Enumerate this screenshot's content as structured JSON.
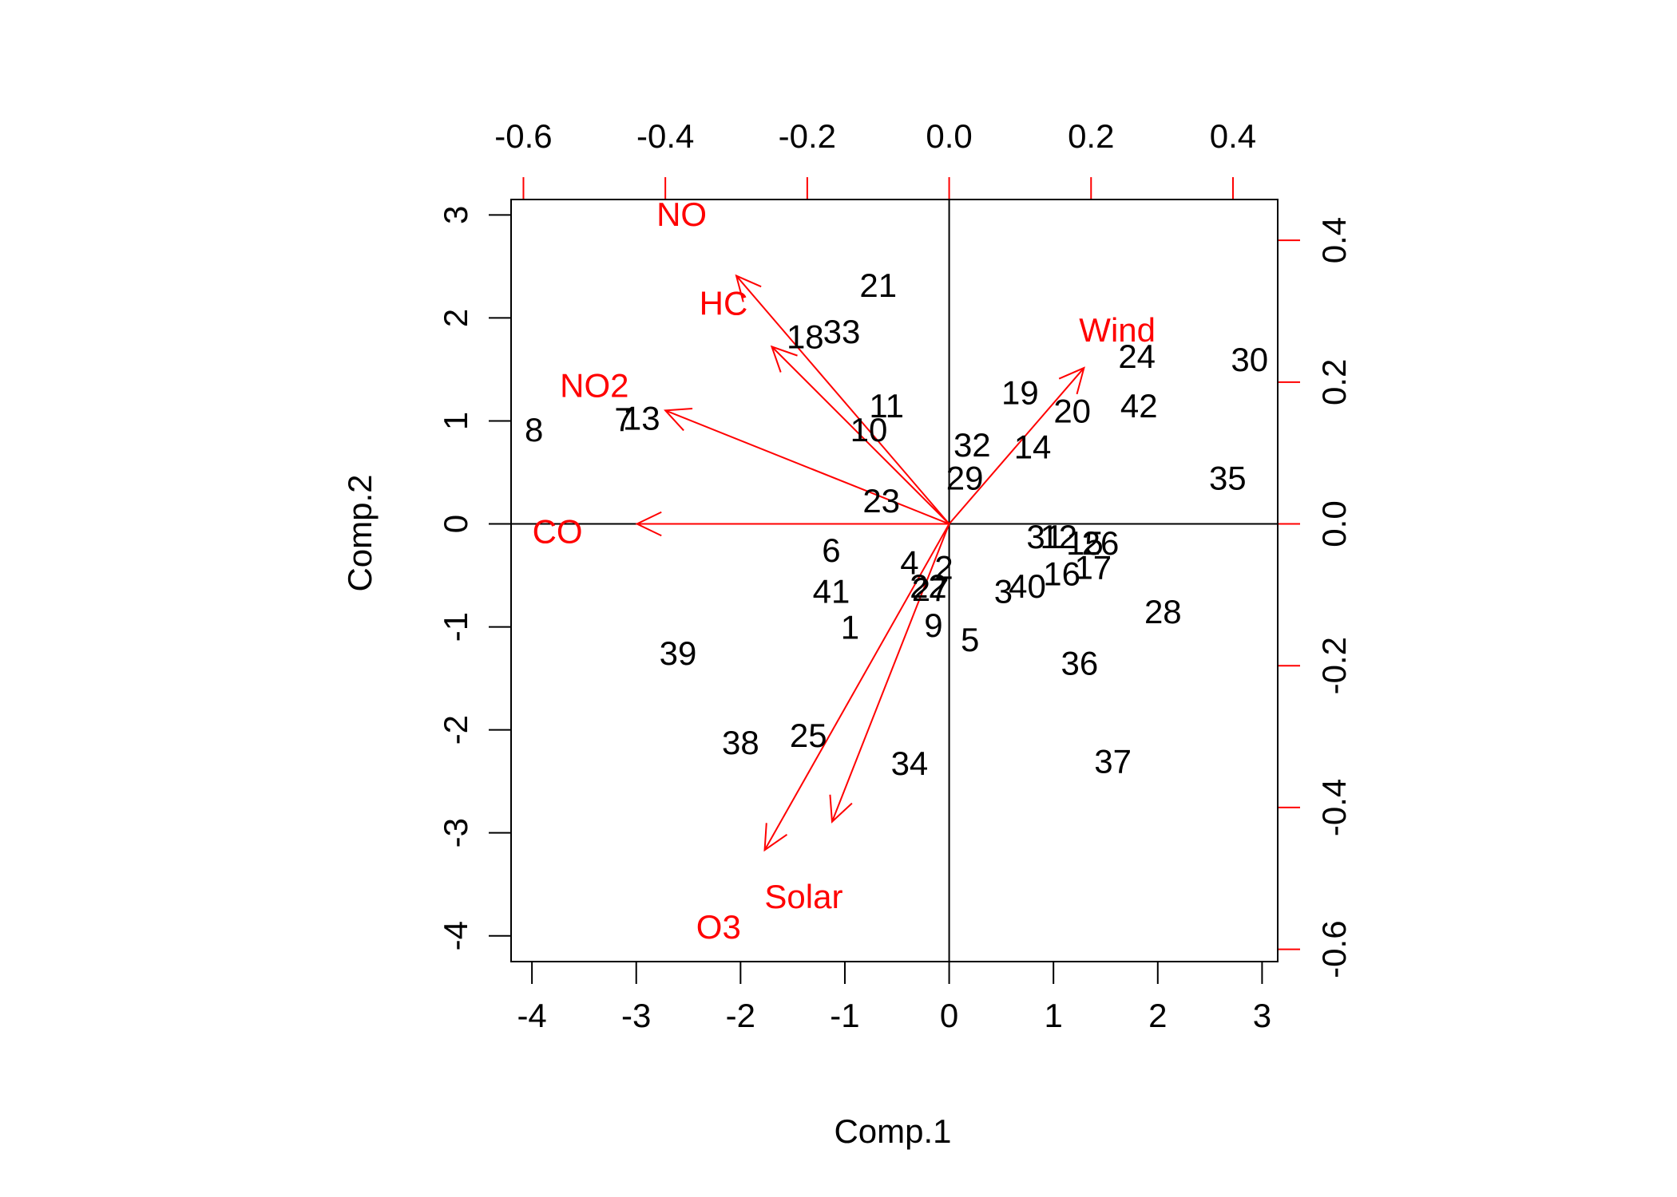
{
  "chart_data": {
    "type": "scatter",
    "xlabel": "Comp.1",
    "ylabel": "Comp.2",
    "xlim": [
      -4.2,
      3.15
    ],
    "ylim": [
      -4.25,
      3.15
    ],
    "x_ticks": [
      -4,
      -3,
      -2,
      -1,
      0,
      1,
      2,
      3
    ],
    "y_ticks": [
      -4,
      -3,
      -2,
      -1,
      0,
      1,
      2,
      3
    ],
    "loading_axis": {
      "top_ticks": [
        -0.6,
        -0.4,
        -0.2,
        0.0,
        0.2,
        0.4
      ],
      "right_ticks": [
        -0.6,
        -0.4,
        -0.2,
        0.0,
        0.2,
        0.4
      ],
      "top_tick_labels": [
        "-0.6",
        "-0.4",
        "-0.2",
        "0.0",
        "0.2",
        "0.4"
      ],
      "right_tick_labels": [
        "-0.6",
        "-0.4",
        "-0.2",
        "0.0",
        "0.2",
        "0.4"
      ],
      "color": "#ff0000"
    },
    "points": [
      {
        "label": "1",
        "x": -0.95,
        "y": -1.0
      },
      {
        "label": "2",
        "x": -0.05,
        "y": -0.42
      },
      {
        "label": "3",
        "x": 0.52,
        "y": -0.65
      },
      {
        "label": "4",
        "x": -0.38,
        "y": -0.37
      },
      {
        "label": "5",
        "x": 0.2,
        "y": -1.12
      },
      {
        "label": "6",
        "x": -1.13,
        "y": -0.25
      },
      {
        "label": "7",
        "x": -3.12,
        "y": 1.02
      },
      {
        "label": "8",
        "x": -3.98,
        "y": 0.92
      },
      {
        "label": "9",
        "x": -0.15,
        "y": -0.98
      },
      {
        "label": "10",
        "x": -0.77,
        "y": 0.92
      },
      {
        "label": "11",
        "x": -0.6,
        "y": 1.15
      },
      {
        "label": "12",
        "x": 1.05,
        "y": -0.12
      },
      {
        "label": "13",
        "x": -2.95,
        "y": 1.03
      },
      {
        "label": "14",
        "x": 0.8,
        "y": 0.75
      },
      {
        "label": "15",
        "x": 1.3,
        "y": -0.18
      },
      {
        "label": "16",
        "x": 1.08,
        "y": -0.48
      },
      {
        "label": "17",
        "x": 1.38,
        "y": -0.42
      },
      {
        "label": "18",
        "x": -1.38,
        "y": 1.82
      },
      {
        "label": "19",
        "x": 0.68,
        "y": 1.28
      },
      {
        "label": "20",
        "x": 1.18,
        "y": 1.1
      },
      {
        "label": "21",
        "x": -0.68,
        "y": 2.32
      },
      {
        "label": "22",
        "x": -0.2,
        "y": -0.6
      },
      {
        "label": "23",
        "x": -0.65,
        "y": 0.23
      },
      {
        "label": "24",
        "x": 1.8,
        "y": 1.63
      },
      {
        "label": "25",
        "x": -1.35,
        "y": -2.05
      },
      {
        "label": "26",
        "x": 1.45,
        "y": -0.18
      },
      {
        "label": "27",
        "x": -0.18,
        "y": -0.63
      },
      {
        "label": "28",
        "x": 2.05,
        "y": -0.85
      },
      {
        "label": "29",
        "x": 0.15,
        "y": 0.45
      },
      {
        "label": "30",
        "x": 2.88,
        "y": 1.6
      },
      {
        "label": "31",
        "x": 0.92,
        "y": -0.12
      },
      {
        "label": "32",
        "x": 0.22,
        "y": 0.77
      },
      {
        "label": "33",
        "x": -1.03,
        "y": 1.87
      },
      {
        "label": "34",
        "x": -0.38,
        "y": -2.32
      },
      {
        "label": "35",
        "x": 2.67,
        "y": 0.45
      },
      {
        "label": "36",
        "x": 1.25,
        "y": -1.35
      },
      {
        "label": "37",
        "x": 1.57,
        "y": -2.3
      },
      {
        "label": "38",
        "x": -2.0,
        "y": -2.12
      },
      {
        "label": "39",
        "x": -2.6,
        "y": -1.25
      },
      {
        "label": "40",
        "x": 0.75,
        "y": -0.6
      },
      {
        "label": "41",
        "x": -1.13,
        "y": -0.65
      },
      {
        "label": "42",
        "x": 1.82,
        "y": 1.15
      }
    ],
    "loadings": [
      {
        "name": "CO",
        "x": -0.44,
        "y": 0.0,
        "label_x": -0.552,
        "label_y": -0.01
      },
      {
        "name": "NO",
        "x": -0.3,
        "y": 0.35,
        "label_x": -0.377,
        "label_y": 0.437
      },
      {
        "name": "HC",
        "x": -0.25,
        "y": 0.25,
        "label_x": -0.318,
        "label_y": 0.312
      },
      {
        "name": "NO2",
        "x": -0.4,
        "y": 0.16,
        "label_x": -0.5,
        "label_y": 0.196
      },
      {
        "name": "Wind",
        "x": 0.19,
        "y": 0.22,
        "label_x": 0.237,
        "label_y": 0.274
      },
      {
        "name": "Solar",
        "x": -0.165,
        "y": -0.42,
        "label_x": -0.205,
        "label_y": -0.525
      },
      {
        "name": "O3",
        "x": -0.26,
        "y": -0.46,
        "label_x": -0.325,
        "label_y": -0.568
      }
    ]
  }
}
